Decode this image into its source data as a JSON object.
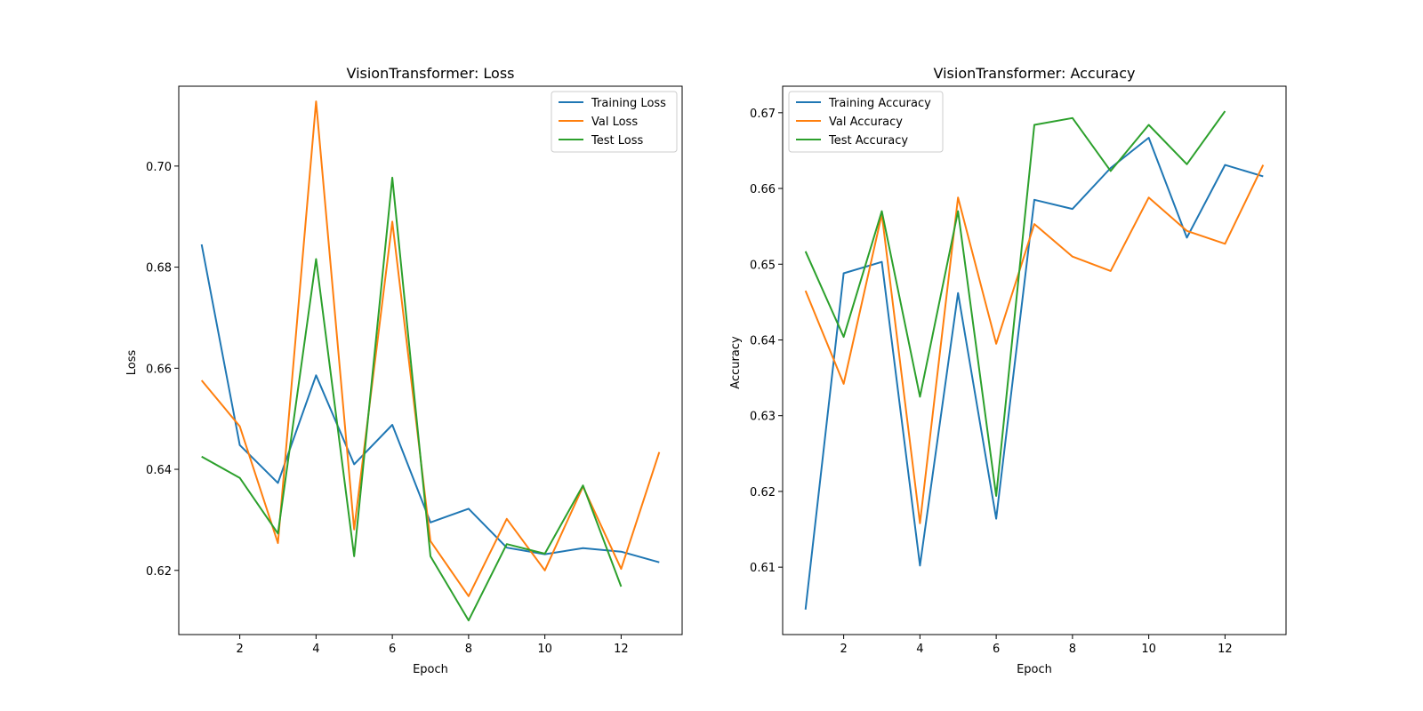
{
  "colors": {
    "training": "#1f77b4",
    "val": "#ff7f0e",
    "test": "#2ca02c",
    "axes": "#000000",
    "background": "#ffffff"
  },
  "chart_data": [
    {
      "type": "line",
      "title": "VisionTransformer: Loss",
      "xlabel": "Epoch",
      "ylabel": "Loss",
      "xlim": [
        0.4,
        13.6
      ],
      "ylim": [
        0.6073,
        0.7158
      ],
      "xticks": [
        2,
        4,
        6,
        8,
        10,
        12
      ],
      "xtick_labels": [
        "2",
        "4",
        "6",
        "8",
        "10",
        "12"
      ],
      "yticks": [
        0.62,
        0.64,
        0.66,
        0.68,
        0.7
      ],
      "ytick_labels": [
        "0.62",
        "0.64",
        "0.66",
        "0.68",
        "0.70"
      ],
      "grid": false,
      "legend_position": "top-right",
      "series": [
        {
          "name": "Training Loss",
          "color_key": "training",
          "x": [
            1,
            2,
            3,
            4,
            5,
            6,
            7,
            8,
            9,
            10,
            11,
            12,
            13
          ],
          "y": [
            0.6845,
            0.6448,
            0.6373,
            0.6586,
            0.641,
            0.6488,
            0.6295,
            0.6322,
            0.6245,
            0.6232,
            0.6244,
            0.6237,
            0.6216
          ]
        },
        {
          "name": "Val Loss",
          "color_key": "val",
          "x": [
            1,
            2,
            3,
            4,
            5,
            6,
            7,
            8,
            9,
            10,
            11,
            12,
            13
          ],
          "y": [
            0.6576,
            0.6485,
            0.6254,
            0.7128,
            0.6281,
            0.689,
            0.6258,
            0.6149,
            0.6302,
            0.62,
            0.6366,
            0.6203,
            0.6434
          ]
        },
        {
          "name": "Test Loss",
          "color_key": "test",
          "x": [
            1,
            2,
            3,
            4,
            5,
            6,
            7,
            8,
            9,
            10,
            11,
            12
          ],
          "y": [
            0.6425,
            0.6383,
            0.6273,
            0.6816,
            0.6228,
            0.6977,
            0.6228,
            0.6101,
            0.6252,
            0.6233,
            0.6368,
            0.6168
          ]
        }
      ]
    },
    {
      "type": "line",
      "title": "VisionTransformer: Accuracy",
      "xlabel": "Epoch",
      "ylabel": "Accuracy",
      "xlim": [
        0.4,
        13.6
      ],
      "ylim": [
        0.6011,
        0.6735
      ],
      "xticks": [
        2,
        4,
        6,
        8,
        10,
        12
      ],
      "xtick_labels": [
        "2",
        "4",
        "6",
        "8",
        "10",
        "12"
      ],
      "yticks": [
        0.61,
        0.62,
        0.63,
        0.64,
        0.65,
        0.66,
        0.67
      ],
      "ytick_labels": [
        "0.61",
        "0.62",
        "0.63",
        "0.64",
        "0.65",
        "0.66",
        "0.67"
      ],
      "grid": false,
      "legend_position": "top-left",
      "series": [
        {
          "name": "Training Accuracy",
          "color_key": "training",
          "x": [
            1,
            2,
            3,
            4,
            5,
            6,
            7,
            8,
            9,
            10,
            11,
            12,
            13
          ],
          "y": [
            0.6044,
            0.6488,
            0.6503,
            0.6102,
            0.6462,
            0.6164,
            0.6585,
            0.6573,
            0.6627,
            0.6667,
            0.6535,
            0.6631,
            0.6616
          ]
        },
        {
          "name": "Val Accuracy",
          "color_key": "val",
          "x": [
            1,
            2,
            3,
            4,
            5,
            6,
            7,
            8,
            9,
            10,
            11,
            12,
            13
          ],
          "y": [
            0.6465,
            0.6342,
            0.6566,
            0.6158,
            0.6588,
            0.6395,
            0.6553,
            0.651,
            0.6491,
            0.6588,
            0.6544,
            0.6527,
            0.6631
          ]
        },
        {
          "name": "Test Accuracy",
          "color_key": "test",
          "x": [
            1,
            2,
            3,
            4,
            5,
            6,
            7,
            8,
            9,
            10,
            11,
            12
          ],
          "y": [
            0.6517,
            0.6404,
            0.657,
            0.6325,
            0.657,
            0.6194,
            0.6684,
            0.6693,
            0.6623,
            0.6684,
            0.6632,
            0.6702
          ]
        }
      ]
    }
  ]
}
